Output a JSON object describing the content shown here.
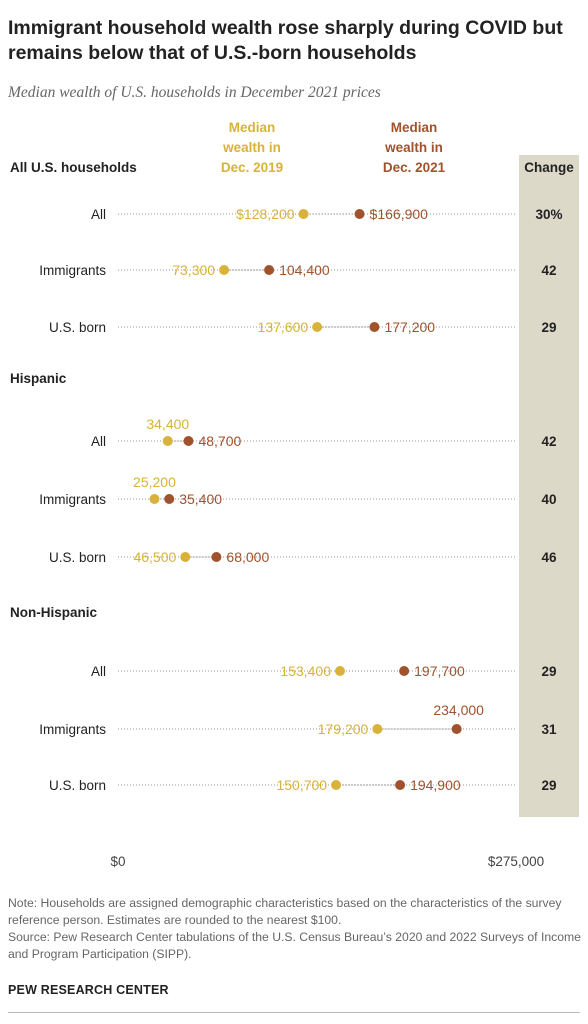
{
  "title": "Immigrant household wealth rose sharply during COVID but remains below that of U.S.-born households",
  "subtitle": "Median wealth of U.S. households in December 2021 prices",
  "note": "Note: Households are assigned demographic characteristics based on the characteristics of the survey reference person. Estimates are rounded to the nearest $100.",
  "source": "Source: Pew Research Center tabulations of the U.S. Census Bureau’s 2020 and 2022 Surveys of Income and Program Participation (SIPP).",
  "brand": "PEW RESEARCH CENTER",
  "colors": {
    "y2019": "#D9B23A",
    "y2021": "#A0522D",
    "change_band": "#DCD9C8",
    "dots_line": "#999999"
  },
  "chart_data": {
    "type": "dot",
    "series": [
      {
        "key": "y2019",
        "name": "Median wealth in Dec. 2019"
      },
      {
        "key": "y2021",
        "name": "Median wealth in Dec. 2021"
      }
    ],
    "change_header": "Change",
    "xlim": [
      0,
      275000
    ],
    "x_tick_labels": [
      "$0",
      "$275,000"
    ],
    "groups": [
      {
        "name": "All U.S. households",
        "rows": [
          {
            "label": "All",
            "y2019": 128200,
            "y2021": 166900,
            "label2019": "$128,200",
            "label2021": "$166,900",
            "change": "30%"
          },
          {
            "label": "Immigrants",
            "y2019": 73300,
            "y2021": 104400,
            "label2019": "73,300",
            "label2021": "104,400",
            "change": "42"
          },
          {
            "label": "U.S. born",
            "y2019": 137600,
            "y2021": 177200,
            "label2019": "137,600",
            "label2021": "177,200",
            "change": "29"
          }
        ]
      },
      {
        "name": "Hispanic",
        "rows": [
          {
            "label": "All",
            "y2019": 34400,
            "y2021": 48700,
            "label2019": "34,400",
            "label2021": "48,700",
            "change": "42"
          },
          {
            "label": "Immigrants",
            "y2019": 25200,
            "y2021": 35400,
            "label2019": "25,200",
            "label2021": "35,400",
            "change": "40"
          },
          {
            "label": "U.S. born",
            "y2019": 46500,
            "y2021": 68000,
            "label2019": "46,500",
            "label2021": "68,000",
            "change": "46"
          }
        ]
      },
      {
        "name": "Non-Hispanic",
        "rows": [
          {
            "label": "All",
            "y2019": 153400,
            "y2021": 197700,
            "label2019": "153,400",
            "label2021": "197,700",
            "change": "29"
          },
          {
            "label": "Immigrants",
            "y2019": 179200,
            "y2021": 234000,
            "label2019": "179,200",
            "label2021": "234,000",
            "change": "31"
          },
          {
            "label": "U.S. born",
            "y2019": 150700,
            "y2021": 194900,
            "label2019": "150,700",
            "label2021": "194,900",
            "change": "29"
          }
        ]
      }
    ]
  }
}
